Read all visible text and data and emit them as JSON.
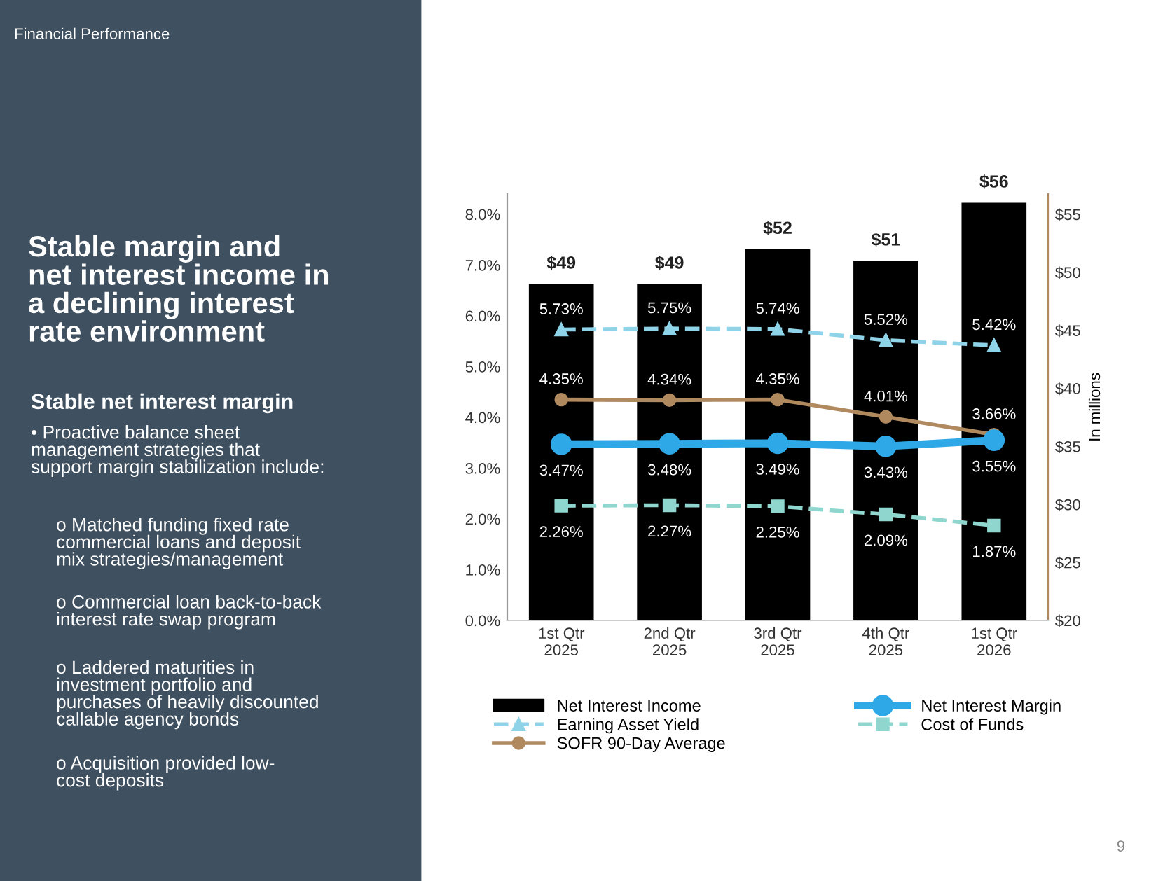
{
  "chart_data": {
    "type": "bar",
    "title": "Stable margin and\nnet interest income in\na declining interest\nrate environment",
    "subtitle": "Stable net interest margin",
    "annotations": [
      "Financial Performance",
      "• Proactive balance sheet\nmanagement strategies that\nsupport margin stabilization include:",
      "o Matched funding fixed rate\ncommercial loans and deposit\nmix strategies/management",
      "o Commercial loan back-to-back\ninterest rate swap program",
      "o Laddered maturities in\ninvestment portfolio and\npurchases of heavily discounted\ncallable agency bonds",
      "o Acquisition provided low-\ncost deposits",
      "9"
    ],
    "y2label": "In millions",
    "categories": [
      "1st Qtr\n2025",
      "2nd Qtr\n2025",
      "3rd Qtr\n2025",
      "4th Qtr\n2025",
      "1st Qtr\n2026"
    ],
    "series": [
      {
        "name": "Net Interest Income",
        "axis": "y2",
        "color": "#000000",
        "values": [
          49,
          49,
          52,
          51,
          56
        ],
        "value_labels": [
          "$49",
          "$49",
          "$52",
          "$51",
          "$56"
        ]
      },
      {
        "name": "Earning Asset Yield",
        "type": "line",
        "color": "#8fd3e8",
        "marker": "triangle",
        "line_style": "dashed",
        "values": [
          5.73,
          5.75,
          5.74,
          5.52,
          5.42
        ],
        "value_labels": [
          "5.73%",
          "5.75%",
          "5.74%",
          "5.52%",
          "5.42%"
        ]
      },
      {
        "name": "SOFR 90-Day Average",
        "type": "line",
        "color": "#b0895e",
        "marker": "circle",
        "line_style": "solid",
        "values": [
          4.35,
          4.34,
          4.35,
          4.01,
          3.66
        ],
        "value_labels": [
          "4.35%",
          "4.34%",
          "4.35%",
          "4.01%",
          "3.66%"
        ]
      },
      {
        "name": "Net Interest Margin",
        "type": "line",
        "color": "#2ea8e6",
        "marker": "circle",
        "line_style": "solid",
        "values": [
          3.47,
          3.48,
          3.49,
          3.43,
          3.55
        ],
        "value_labels": [
          "3.47%",
          "3.48%",
          "3.49%",
          "3.43%",
          "3.55%"
        ]
      },
      {
        "name": "Cost of Funds",
        "type": "line",
        "color": "#8fd6cf",
        "marker": "square",
        "line_style": "dashed",
        "values": [
          2.26,
          2.27,
          2.25,
          2.09,
          1.87
        ],
        "value_labels": [
          "2.26%",
          "2.27%",
          "2.25%",
          "2.09%",
          "1.87%"
        ]
      }
    ],
    "ylim": [
      0,
      8.4
    ],
    "yticks": [
      {
        "value": 0,
        "label": "0.0%"
      },
      {
        "value": 1,
        "label": "1.0%"
      },
      {
        "value": 2,
        "label": "2.0%"
      },
      {
        "value": 3,
        "label": "3.0%"
      },
      {
        "value": 4,
        "label": "4.0%"
      },
      {
        "value": 5,
        "label": "5.0%"
      },
      {
        "value": 6,
        "label": "6.0%"
      },
      {
        "value": 7,
        "label": "7.0%"
      },
      {
        "value": 8,
        "label": "8.0%"
      }
    ],
    "y2lim": [
      20,
      56.75
    ],
    "y2ticks": [
      {
        "value": 20,
        "label": "$20"
      },
      {
        "value": 25,
        "label": "$25"
      },
      {
        "value": 30,
        "label": "$30"
      },
      {
        "value": 35,
        "label": "$35"
      },
      {
        "value": 40,
        "label": "$40"
      },
      {
        "value": 45,
        "label": "$45"
      },
      {
        "value": 50,
        "label": "$50"
      },
      {
        "value": 55,
        "label": "$55"
      }
    ],
    "grid": false,
    "legend": "bottom"
  }
}
